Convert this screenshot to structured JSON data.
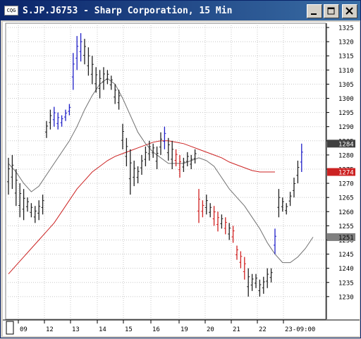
{
  "window": {
    "title": "S.JP.J6753 - Sharp Corporation, 15 Min",
    "app_icon_label": "CQG",
    "buttons": [
      "minimize",
      "maximize",
      "close"
    ]
  },
  "colors": {
    "up_bar": "#1f1fc8",
    "down_bar": "#d02020",
    "neutral_bar": "#202020",
    "long_ma": "#cc2222",
    "short_ma": "#707070",
    "grid": "#c8c8c8",
    "title_bg": "#0a246a"
  },
  "chart_data": {
    "type": "line",
    "title": "",
    "ylim": [
      1225,
      1325
    ],
    "y_ticks": [
      1230,
      1235,
      1240,
      1245,
      1250,
      1255,
      1260,
      1265,
      1270,
      1275,
      1280,
      1285,
      1290,
      1295,
      1300,
      1305,
      1310,
      1315,
      1320,
      1325
    ],
    "x_sessions": [
      "09",
      "12",
      "13",
      "14",
      "15",
      "16",
      "19",
      "20",
      "21",
      "22",
      "23-09:00"
    ],
    "grid": true,
    "price_markers": [
      {
        "value": 1284,
        "label": "1284",
        "style": "last"
      },
      {
        "value": 1274,
        "label": "1274",
        "style": "long_ma"
      },
      {
        "value": 1251,
        "label": "1251",
        "style": "short_ma"
      }
    ],
    "series": [
      {
        "key": "long_ma",
        "values": [
          [
            0,
            1238
          ],
          [
            2,
            1241
          ],
          [
            4,
            1244
          ],
          [
            6,
            1247
          ],
          [
            8,
            1250
          ],
          [
            10,
            1253
          ],
          [
            12,
            1256
          ],
          [
            14,
            1260
          ],
          [
            16,
            1264
          ],
          [
            18,
            1268
          ],
          [
            20,
            1271
          ],
          [
            22,
            1274
          ],
          [
            24,
            1276
          ],
          [
            26,
            1278
          ],
          [
            28,
            1279.5
          ],
          [
            30,
            1280.5
          ],
          [
            32,
            1281.5
          ],
          [
            34,
            1282.5
          ],
          [
            36,
            1283.5
          ],
          [
            38,
            1284.5
          ],
          [
            40,
            1285
          ],
          [
            42,
            1285
          ],
          [
            44,
            1284.5
          ],
          [
            46,
            1284
          ],
          [
            48,
            1283
          ],
          [
            50,
            1282
          ],
          [
            52,
            1281
          ],
          [
            54,
            1280
          ],
          [
            56,
            1279
          ],
          [
            58,
            1277.5
          ],
          [
            60,
            1276.5
          ],
          [
            62,
            1275.5
          ],
          [
            64,
            1274.5
          ],
          [
            66,
            1274
          ],
          [
            68,
            1274
          ],
          [
            70,
            1274
          ]
        ]
      },
      {
        "key": "short_ma",
        "values": [
          [
            0,
            1277
          ],
          [
            2,
            1274
          ],
          [
            4,
            1270
          ],
          [
            6,
            1267
          ],
          [
            8,
            1269
          ],
          [
            10,
            1273
          ],
          [
            12,
            1277
          ],
          [
            14,
            1281
          ],
          [
            16,
            1285
          ],
          [
            18,
            1290
          ],
          [
            20,
            1296
          ],
          [
            22,
            1301
          ],
          [
            24,
            1305
          ],
          [
            26,
            1307
          ],
          [
            28,
            1305
          ],
          [
            30,
            1300
          ],
          [
            32,
            1294
          ],
          [
            34,
            1288
          ],
          [
            36,
            1284
          ],
          [
            38,
            1281
          ],
          [
            40,
            1279
          ],
          [
            42,
            1277
          ],
          [
            44,
            1277
          ],
          [
            46,
            1277
          ],
          [
            48,
            1278
          ],
          [
            50,
            1279
          ],
          [
            52,
            1278
          ],
          [
            54,
            1276
          ],
          [
            56,
            1272
          ],
          [
            58,
            1268
          ],
          [
            60,
            1265
          ],
          [
            62,
            1262
          ],
          [
            64,
            1258
          ],
          [
            66,
            1254
          ],
          [
            68,
            1249
          ],
          [
            70,
            1245
          ],
          [
            72,
            1242
          ],
          [
            74,
            1242
          ],
          [
            76,
            1244
          ],
          [
            78,
            1247
          ],
          [
            80,
            1251
          ]
        ]
      },
      {
        "key": "price",
        "name": "Sharp 15 Min",
        "bars": [
          [
            0,
            1266,
            1279,
            "n"
          ],
          [
            1,
            1268,
            1280,
            "n"
          ],
          [
            2,
            1262,
            1275,
            "n"
          ],
          [
            3,
            1258,
            1270,
            "n"
          ],
          [
            4,
            1257,
            1268,
            "n"
          ],
          [
            5,
            1260,
            1265,
            "n"
          ],
          [
            6,
            1258,
            1263,
            "n"
          ],
          [
            7,
            1256,
            1262,
            "n"
          ],
          [
            8,
            1257,
            1264,
            "n"
          ],
          [
            9,
            1259,
            1266,
            "n"
          ],
          [
            10,
            1286,
            1292,
            "n"
          ],
          [
            11,
            1289,
            1296,
            "n"
          ],
          [
            12,
            1290,
            1297,
            "u"
          ],
          [
            13,
            1289,
            1295,
            "u"
          ],
          [
            14,
            1290,
            1294,
            "u"
          ],
          [
            15,
            1292,
            1296,
            "u"
          ],
          [
            16,
            1294,
            1298,
            "u"
          ],
          [
            17,
            1303,
            1316,
            "u"
          ],
          [
            18,
            1310,
            1322,
            "u"
          ],
          [
            19,
            1313,
            1323,
            "u"
          ],
          [
            20,
            1312,
            1321,
            "n"
          ],
          [
            21,
            1308,
            1318,
            "n"
          ],
          [
            22,
            1305,
            1315,
            "n"
          ],
          [
            23,
            1302,
            1311,
            "n"
          ],
          [
            24,
            1300,
            1310,
            "n"
          ],
          [
            25,
            1303,
            1311,
            "n"
          ],
          [
            26,
            1305,
            1310,
            "n"
          ],
          [
            27,
            1303,
            1308,
            "n"
          ],
          [
            28,
            1298,
            1305,
            "n"
          ],
          [
            29,
            1296,
            1303,
            "n"
          ],
          [
            30,
            1282,
            1291,
            "n"
          ],
          [
            31,
            1276,
            1286,
            "n"
          ],
          [
            32,
            1266,
            1282,
            "n"
          ],
          [
            33,
            1269,
            1278,
            "n"
          ],
          [
            34,
            1270,
            1276,
            "n"
          ],
          [
            35,
            1273,
            1280,
            "n"
          ],
          [
            36,
            1276,
            1283,
            "n"
          ],
          [
            37,
            1278,
            1285,
            "n"
          ],
          [
            38,
            1279,
            1284,
            "n"
          ],
          [
            39,
            1275,
            1283,
            "n"
          ],
          [
            40,
            1280,
            1288,
            "n"
          ],
          [
            41,
            1282,
            1290,
            "u"
          ],
          [
            42,
            1278,
            1286,
            "n"
          ],
          [
            43,
            1275,
            1285,
            "n"
          ],
          [
            44,
            1276,
            1282,
            "d"
          ],
          [
            45,
            1272,
            1280,
            "d"
          ],
          [
            46,
            1274,
            1279,
            "n"
          ],
          [
            47,
            1276,
            1281,
            "n"
          ],
          [
            48,
            1275,
            1280,
            "n"
          ],
          [
            49,
            1277,
            1282,
            "n"
          ],
          [
            50,
            1256,
            1268,
            "d"
          ],
          [
            51,
            1258,
            1264,
            "d"
          ],
          [
            52,
            1259,
            1266,
            "n"
          ],
          [
            53,
            1258,
            1263,
            "n"
          ],
          [
            54,
            1255,
            1262,
            "d"
          ],
          [
            55,
            1253,
            1260,
            "d"
          ],
          [
            56,
            1254,
            1259,
            "n"
          ],
          [
            57,
            1252,
            1258,
            "d"
          ],
          [
            58,
            1250,
            1256,
            "n"
          ],
          [
            59,
            1249,
            1255,
            "d"
          ],
          [
            60,
            1243,
            1248,
            "d"
          ],
          [
            61,
            1240,
            1246,
            "d"
          ],
          [
            62,
            1236,
            1244,
            "d"
          ],
          [
            63,
            1230,
            1240,
            "n"
          ],
          [
            64,
            1232,
            1238,
            "n"
          ],
          [
            65,
            1233,
            1238,
            "n"
          ],
          [
            66,
            1230,
            1236,
            "n"
          ],
          [
            67,
            1231,
            1237,
            "n"
          ],
          [
            68,
            1233,
            1240,
            "n"
          ],
          [
            69,
            1235,
            1240,
            "n"
          ],
          [
            70,
            1245,
            1254,
            "u"
          ],
          [
            71,
            1258,
            1268,
            "n"
          ],
          [
            72,
            1260,
            1265,
            "n"
          ],
          [
            73,
            1259,
            1263,
            "n"
          ],
          [
            74,
            1262,
            1267,
            "n"
          ],
          [
            75,
            1265,
            1272,
            "n"
          ],
          [
            76,
            1270,
            1278,
            "n"
          ],
          [
            77,
            1274,
            1284,
            "u"
          ]
        ]
      }
    ]
  }
}
